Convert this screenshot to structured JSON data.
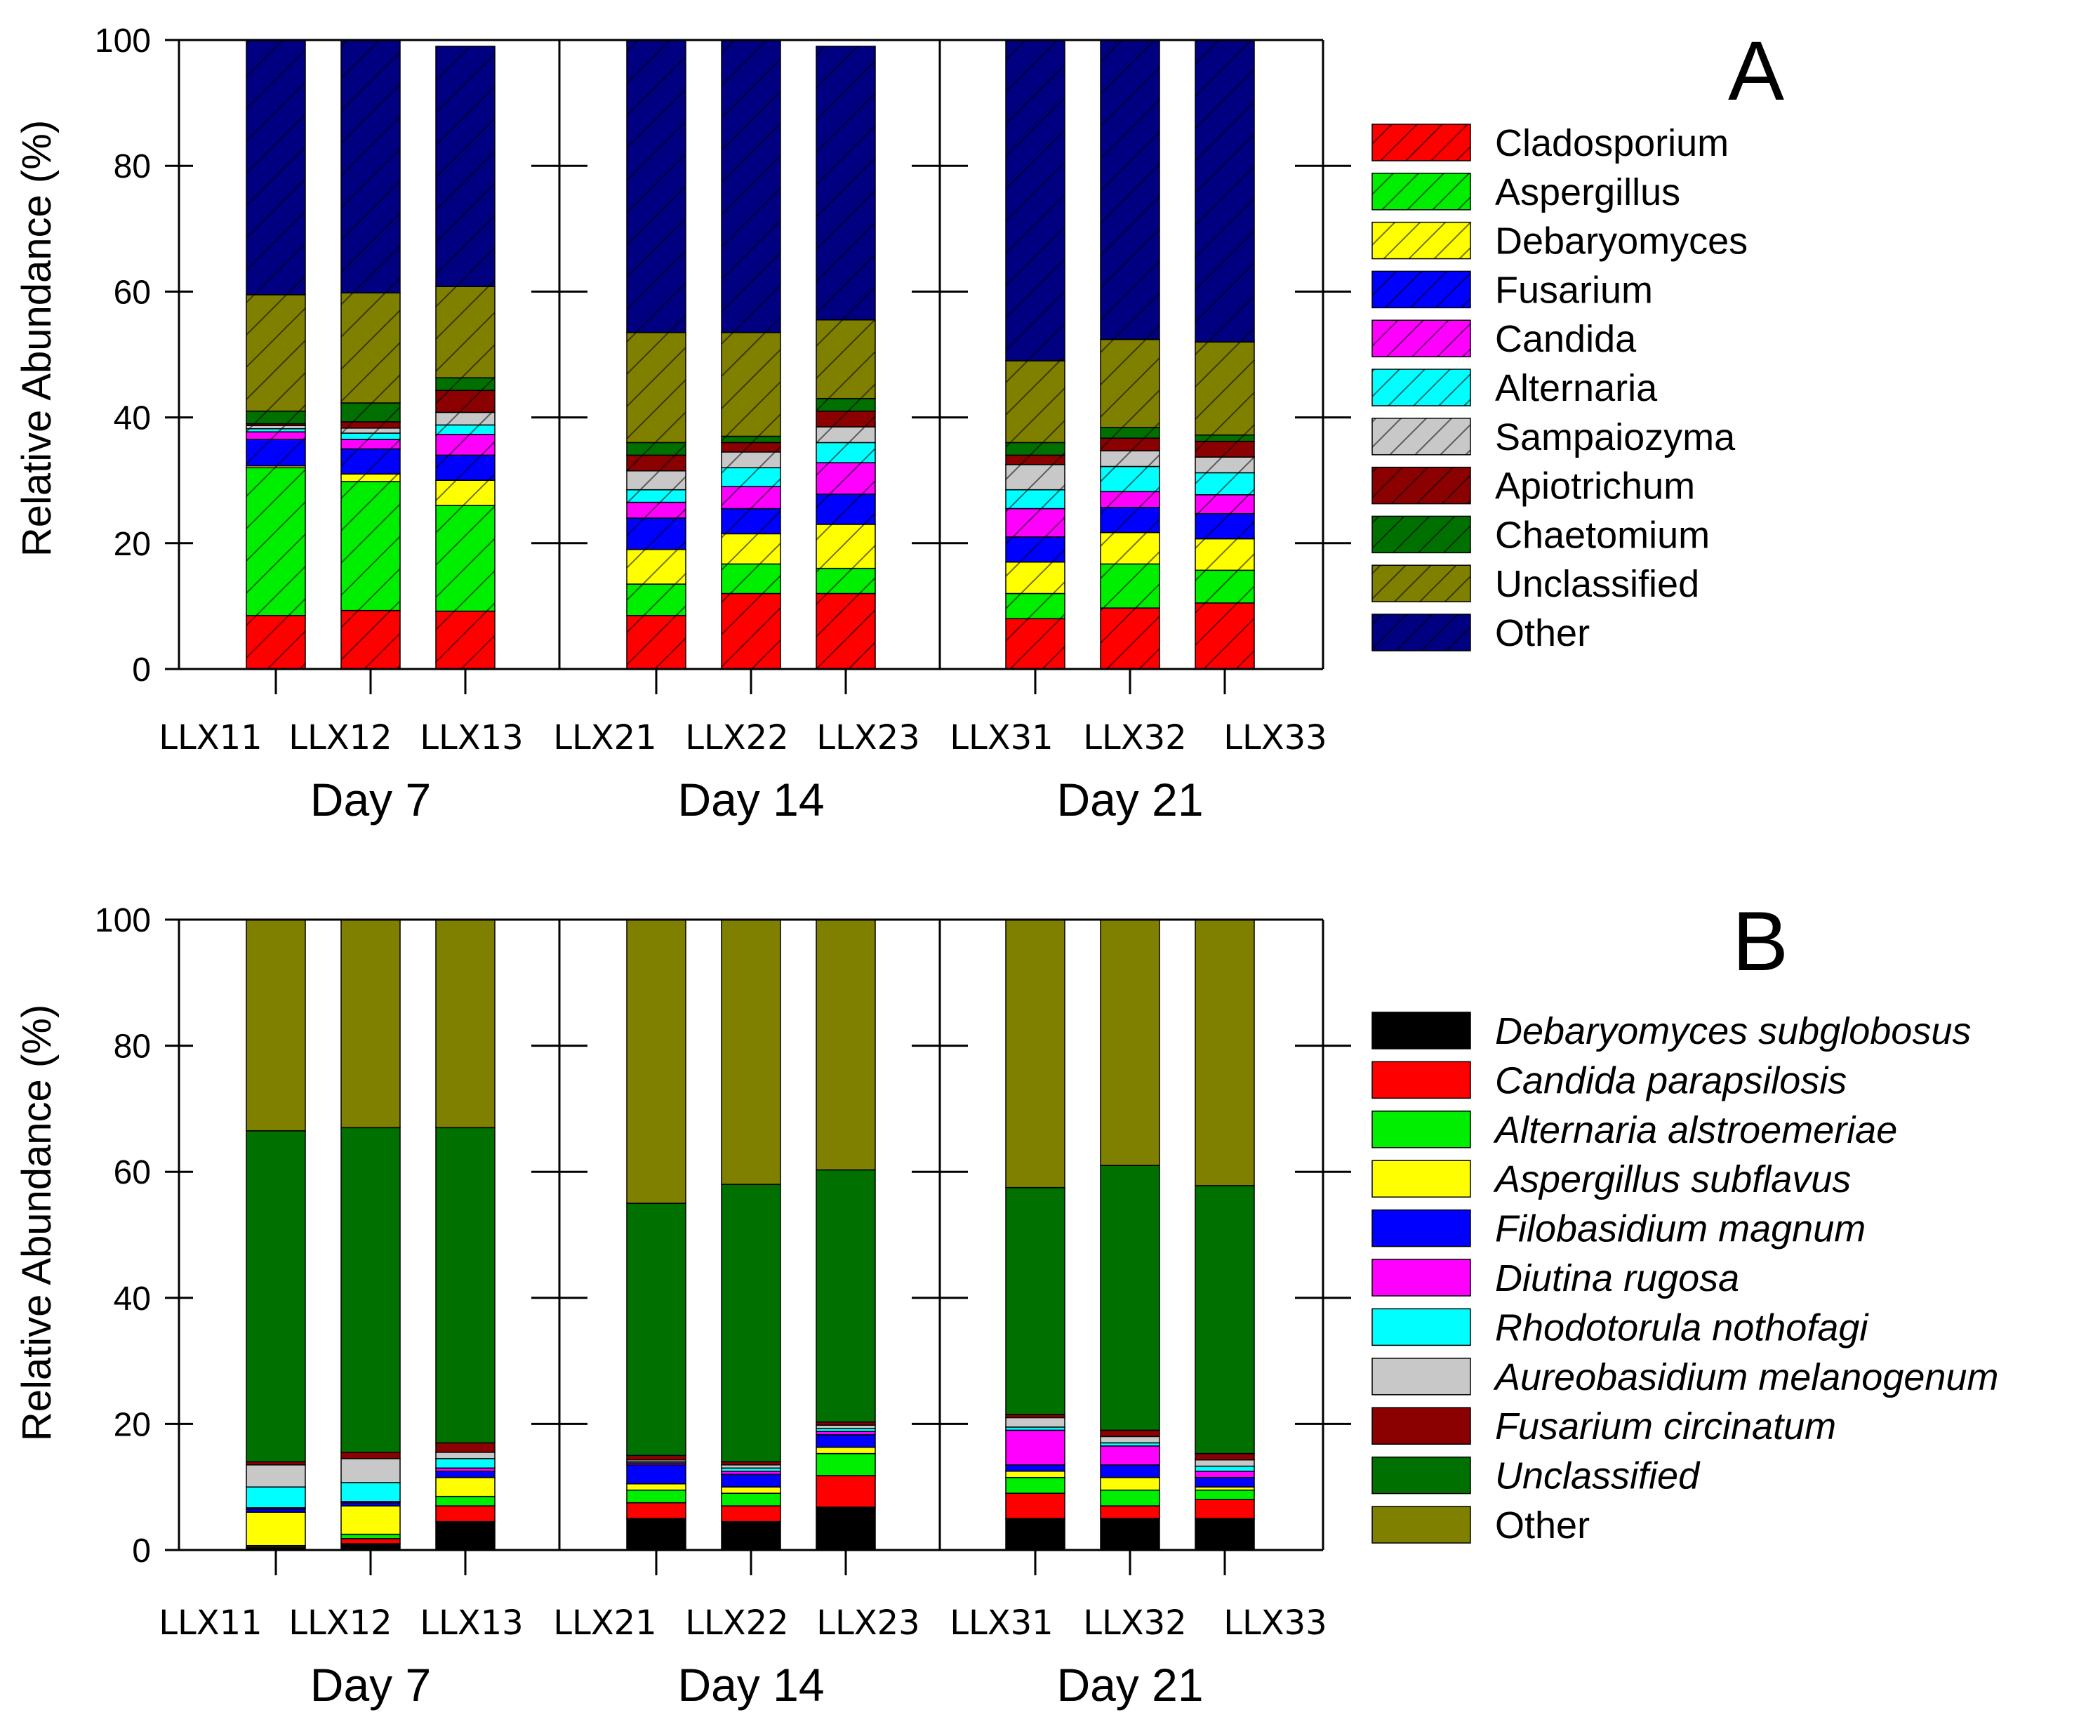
{
  "chart_data": [
    {
      "type": "bar",
      "stacked": true,
      "panel": "A",
      "ylabel": "Relative Abundance (%)",
      "ylim": [
        0,
        100
      ],
      "yticks": [
        "0",
        "20",
        "40",
        "60",
        "80",
        "100"
      ],
      "categories": [
        "LLX11",
        "LLX12",
        "LLX13",
        "LLX21",
        "LLX22",
        "LLX23",
        "LLX31",
        "LLX32",
        "LLX33"
      ],
      "groups": [
        "Day 7",
        "Day 14",
        "Day 21"
      ],
      "hatched": true,
      "italic_legend": false,
      "series": [
        {
          "name": "Cladosporium",
          "color": "#ff0000",
          "values": [
            8.5,
            9.3,
            9.2,
            8.5,
            12.0,
            12.0,
            8.0,
            9.7,
            10.5
          ]
        },
        {
          "name": "Aspergillus",
          "color": "#00ee00",
          "values": [
            23.5,
            20.5,
            16.8,
            5.0,
            4.7,
            4.0,
            4.0,
            7.0,
            5.2
          ]
        },
        {
          "name": "Debaryomyces",
          "color": "#ffff00",
          "values": [
            0.3,
            1.2,
            4.0,
            5.5,
            4.8,
            7.0,
            5.0,
            5.0,
            5.0
          ]
        },
        {
          "name": "Fusarium",
          "color": "#0000ff",
          "values": [
            4.2,
            4.0,
            4.0,
            5.0,
            4.0,
            4.8,
            4.0,
            4.0,
            4.0
          ]
        },
        {
          "name": "Candida",
          "color": "#ff00ff",
          "values": [
            1.2,
            1.5,
            3.3,
            2.5,
            3.5,
            5.0,
            4.5,
            2.5,
            3.0
          ]
        },
        {
          "name": "Alternaria",
          "color": "#00ffff",
          "values": [
            0.5,
            1.0,
            1.5,
            2.0,
            3.0,
            3.2,
            3.0,
            4.0,
            3.5
          ]
        },
        {
          "name": "Sampaiozyma",
          "color": "#c8c8c8",
          "values": [
            0.5,
            0.8,
            2.0,
            3.0,
            2.5,
            2.5,
            4.0,
            2.5,
            2.5
          ]
        },
        {
          "name": "Apiotrichum",
          "color": "#8b0000",
          "values": [
            0.3,
            1.0,
            3.5,
            2.5,
            1.5,
            2.5,
            1.5,
            2.0,
            2.5
          ]
        },
        {
          "name": "Chaetomium",
          "color": "#007000",
          "values": [
            2.0,
            3.0,
            2.0,
            2.0,
            1.0,
            2.0,
            2.0,
            1.7,
            1.0
          ]
        },
        {
          "name": "Unclassified",
          "color": "#808000",
          "values": [
            18.5,
            17.5,
            14.5,
            17.5,
            16.5,
            12.5,
            13.0,
            14.0,
            14.8
          ]
        },
        {
          "name": "Other",
          "color": "#000080",
          "values": [
            40.5,
            40.2,
            38.2,
            46.5,
            46.5,
            43.5,
            51.0,
            47.6,
            48.0
          ]
        }
      ]
    },
    {
      "type": "bar",
      "stacked": true,
      "panel": "B",
      "ylabel": "Relative Abundance (%)",
      "ylim": [
        0,
        100
      ],
      "yticks": [
        "0",
        "20",
        "40",
        "60",
        "80",
        "100"
      ],
      "categories": [
        "LLX11",
        "LLX12",
        "LLX13",
        "LLX21",
        "LLX22",
        "LLX23",
        "LLX31",
        "LLX32",
        "LLX33"
      ],
      "groups": [
        "Day 7",
        "Day 14",
        "Day 21"
      ],
      "hatched": false,
      "italic_legend": true,
      "series": [
        {
          "name": "Debaryomyces subglobosus",
          "color": "#000000",
          "values": [
            0.3,
            1.0,
            4.5,
            5.0,
            4.5,
            6.8,
            5.0,
            5.0,
            5.0
          ]
        },
        {
          "name": "Candida parapsilosis",
          "color": "#ff0000",
          "values": [
            0.2,
            0.8,
            2.5,
            2.5,
            2.5,
            5.0,
            4.0,
            2.0,
            3.0
          ]
        },
        {
          "name": "Alternaria alstroemeriae",
          "color": "#00ee00",
          "values": [
            0.2,
            0.7,
            1.5,
            2.0,
            2.0,
            3.5,
            2.5,
            2.5,
            1.5
          ]
        },
        {
          "name": "Aspergillus subflavus",
          "color": "#ffff00",
          "values": [
            5.3,
            4.5,
            3.0,
            1.0,
            1.0,
            1.0,
            1.0,
            2.0,
            0.5
          ]
        },
        {
          "name": "Filobasidium magnum",
          "color": "#0000ff",
          "values": [
            0.5,
            0.5,
            1.0,
            3.0,
            2.0,
            2.0,
            1.0,
            2.0,
            1.5
          ]
        },
        {
          "name": "Diutina rugosa",
          "color": "#ff00ff",
          "values": [
            0.2,
            0.2,
            0.5,
            0.3,
            0.5,
            0.5,
            5.5,
            3.0,
            1.0
          ]
        },
        {
          "name": "Rhodotorula nothofagi",
          "color": "#00ffff",
          "values": [
            3.3,
            3.0,
            1.5,
            0.2,
            0.5,
            0.5,
            0.5,
            0.5,
            0.8
          ]
        },
        {
          "name": "Aureobasidium melanogenum",
          "color": "#c8c8c8",
          "values": [
            3.5,
            3.8,
            1.0,
            0.3,
            0.5,
            0.5,
            1.5,
            1.0,
            1.0
          ]
        },
        {
          "name": "Fusarium circinatum",
          "color": "#8b0000",
          "values": [
            0.5,
            1.0,
            1.5,
            0.7,
            0.5,
            0.5,
            0.5,
            1.0,
            1.0
          ]
        },
        {
          "name": "Unclassified",
          "color": "#007000",
          "values": [
            52.5,
            51.5,
            50.0,
            40.0,
            44.0,
            40.0,
            36.0,
            42.0,
            42.5
          ]
        },
        {
          "name": "Other",
          "color": "#808000",
          "values": [
            33.5,
            33.0,
            33.0,
            45.0,
            42.0,
            39.7,
            42.5,
            39.0,
            42.2
          ]
        }
      ]
    }
  ]
}
